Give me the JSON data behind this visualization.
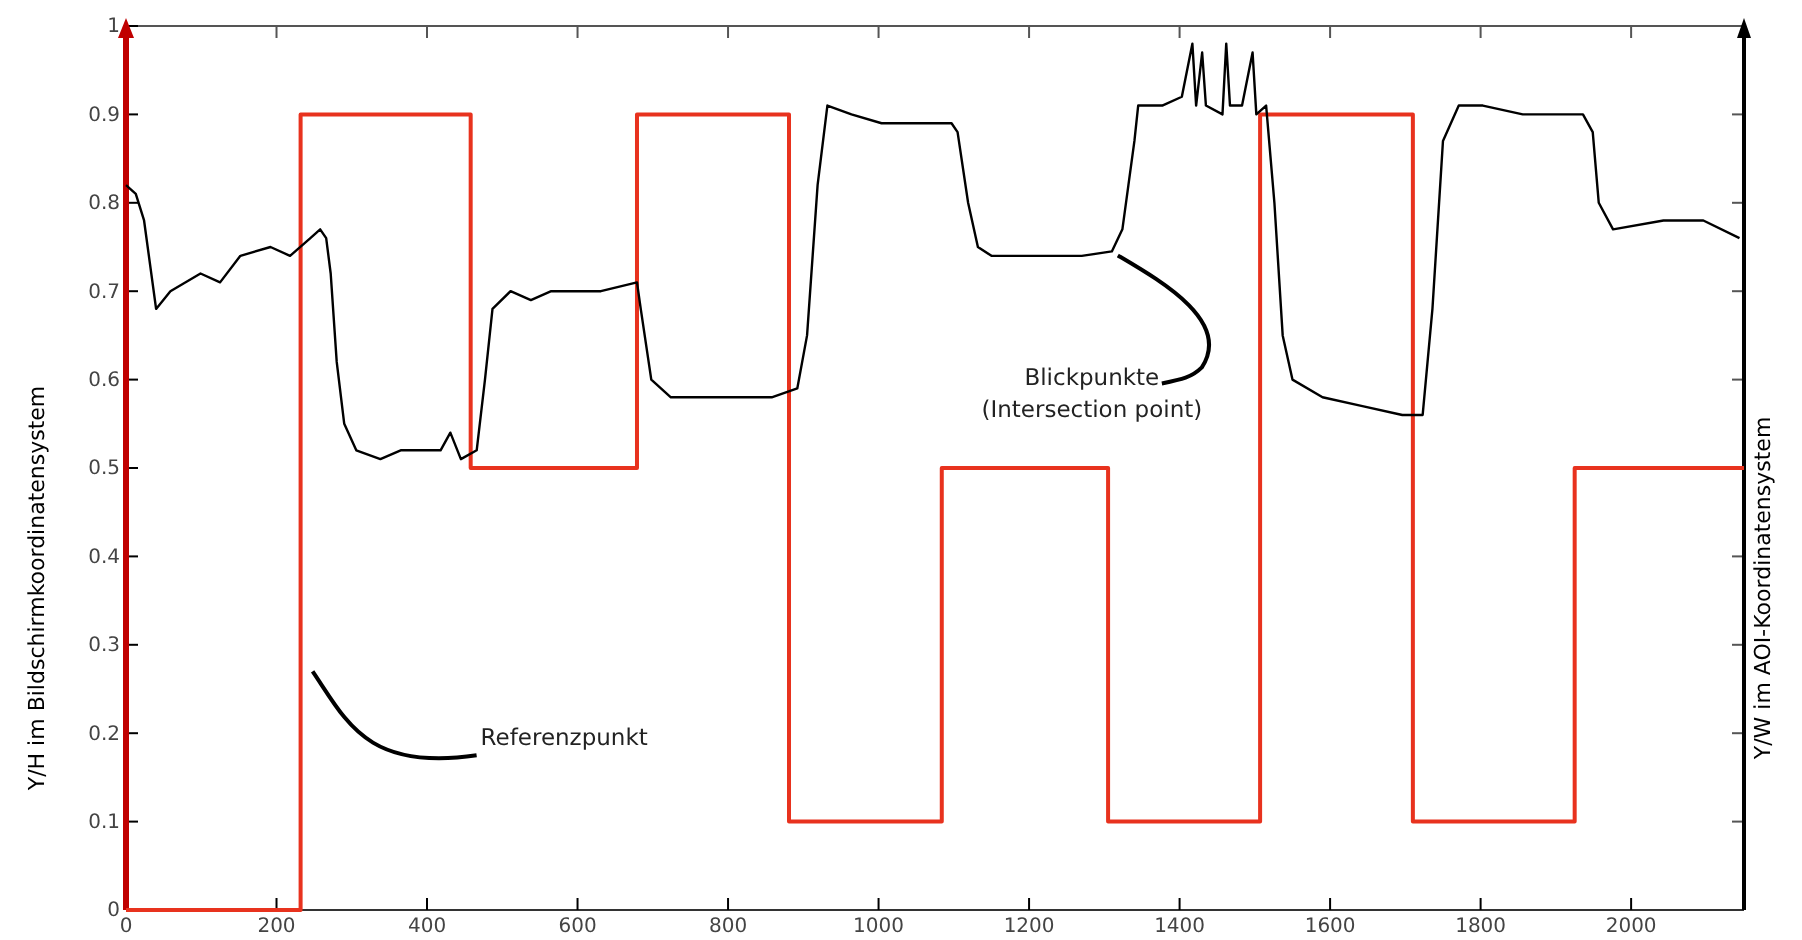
{
  "chart_data": {
    "type": "line",
    "ylabel": "Y/H im Bildschirmkoordinatensystem",
    "y2label": "Y/W im AOI-Koordinatensystem",
    "xlim": [
      0,
      2150
    ],
    "xticks": [
      0,
      200,
      400,
      600,
      800,
      1000,
      1200,
      1400,
      1600,
      1800,
      2000
    ],
    "ylim": [
      0,
      1
    ],
    "yticks": [
      0,
      0.1,
      0.2,
      0.3,
      0.4,
      0.5,
      0.6,
      0.7,
      0.8,
      0.9,
      1
    ],
    "grid": false,
    "marker": "none",
    "line_style": "solid",
    "series": [
      {
        "type": "step",
        "color": "#e8321e",
        "x": [
          0,
          232,
          458,
          679,
          881,
          1084,
          1305,
          1507,
          1710,
          1925,
          2150
        ],
        "values": [
          0,
          0.9,
          0.5,
          0.9,
          0.1,
          0.5,
          0.1,
          0.9,
          0.1,
          0.5,
          0.5
        ]
      },
      {
        "color": "#000000",
        "x": [
          0,
          13,
          24,
          40,
          59,
          99,
          125,
          152,
          192,
          218,
          245,
          258,
          266,
          272,
          280,
          290,
          306,
          338,
          365,
          418,
          431,
          445,
          466,
          477,
          487,
          511,
          538,
          565,
          631,
          679,
          684,
          698,
          724,
          791,
          858,
          892,
          905,
          919,
          932,
          964,
          1004,
          1097,
          1105,
          1119,
          1132,
          1150,
          1217,
          1270,
          1310,
          1324,
          1332,
          1340,
          1345,
          1377,
          1403,
          1417,
          1422,
          1430,
          1435,
          1457,
          1462,
          1467,
          1483,
          1497,
          1502,
          1515,
          1526,
          1537,
          1550,
          1590,
          1643,
          1696,
          1723,
          1736,
          1750,
          1771,
          1803,
          1856,
          1936,
          1949,
          1957,
          1976,
          2043,
          2096,
          2144
        ],
        "values": [
          0.82,
          0.81,
          0.78,
          0.68,
          0.7,
          0.72,
          0.71,
          0.74,
          0.75,
          0.74,
          0.76,
          0.77,
          0.76,
          0.72,
          0.62,
          0.55,
          0.52,
          0.51,
          0.52,
          0.52,
          0.54,
          0.51,
          0.52,
          0.6,
          0.68,
          0.7,
          0.69,
          0.7,
          0.7,
          0.71,
          0.68,
          0.6,
          0.58,
          0.58,
          0.58,
          0.59,
          0.65,
          0.82,
          0.91,
          0.9,
          0.89,
          0.89,
          0.88,
          0.8,
          0.75,
          0.74,
          0.74,
          0.74,
          0.745,
          0.77,
          0.82,
          0.87,
          0.91,
          0.91,
          0.92,
          0.98,
          0.91,
          0.97,
          0.91,
          0.9,
          0.98,
          0.91,
          0.91,
          0.97,
          0.9,
          0.91,
          0.8,
          0.65,
          0.6,
          0.58,
          0.57,
          0.56,
          0.56,
          0.68,
          0.87,
          0.91,
          0.91,
          0.9,
          0.9,
          0.88,
          0.8,
          0.77,
          0.78,
          0.78,
          0.76
        ]
      }
    ],
    "annotations": [
      {
        "text": "Referenzpunkt",
        "x": 240,
        "y": 0.27
      },
      {
        "text": "Blickpunkte\n(Intersection point)",
        "x": 1310,
        "y": 0.745
      }
    ]
  }
}
